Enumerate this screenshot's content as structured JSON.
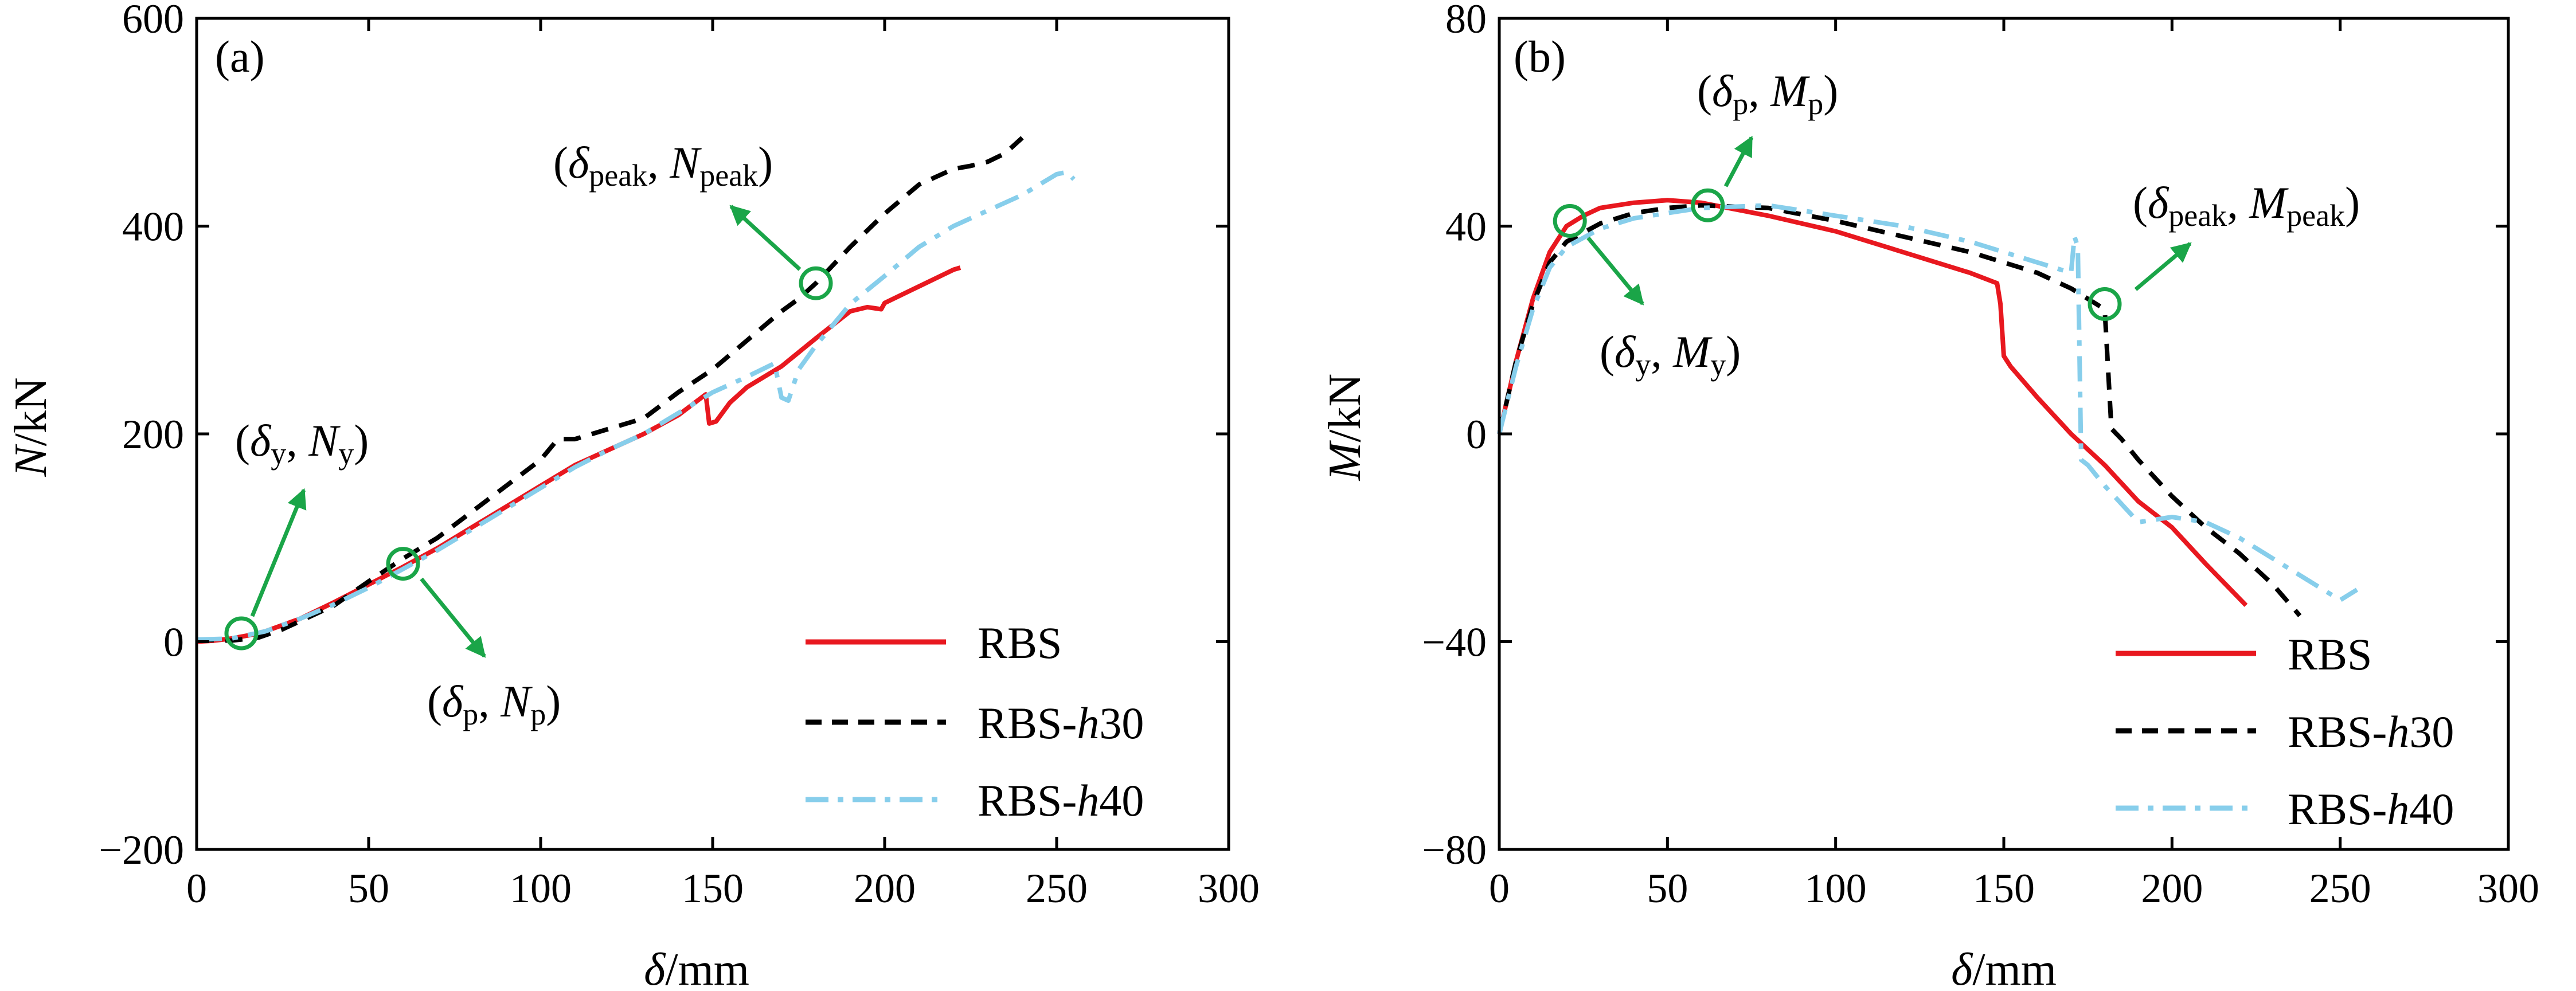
{
  "chart_data": [
    {
      "type": "line",
      "panel_label": "(a)",
      "xlabel": "δ/mm",
      "ylabel": "N/kN",
      "xlim": [
        0,
        300
      ],
      "ylim": [
        -200,
        600
      ],
      "xticks": [
        0,
        50,
        100,
        150,
        200,
        250,
        300
      ],
      "yticks": [
        -200,
        0,
        200,
        400,
        600
      ],
      "grid": false,
      "legend_position": "bottom-right",
      "series": [
        {
          "name": "RBS",
          "color": "#e8181f",
          "dash": "solid",
          "points": [
            [
              0,
              0
            ],
            [
              5,
              1
            ],
            [
              10,
              3
            ],
            [
              15,
              6
            ],
            [
              20,
              10
            ],
            [
              30,
              22
            ],
            [
              40,
              38
            ],
            [
              50,
              55
            ],
            [
              60,
              72
            ],
            [
              70,
              90
            ],
            [
              80,
              110
            ],
            [
              90,
              130
            ],
            [
              100,
              150
            ],
            [
              110,
              170
            ],
            [
              120,
              185
            ],
            [
              130,
              200
            ],
            [
              140,
              218
            ],
            [
              148,
              238
            ],
            [
              149,
              210
            ],
            [
              151,
              212
            ],
            [
              155,
              230
            ],
            [
              160,
              245
            ],
            [
              170,
              265
            ],
            [
              180,
              292
            ],
            [
              190,
              318
            ],
            [
              195,
              322
            ],
            [
              199,
              320
            ],
            [
              200,
              326
            ],
            [
              210,
              342
            ],
            [
              220,
              358
            ],
            [
              222,
              360
            ]
          ]
        },
        {
          "name": "RBS-h30",
          "color": "#000000",
          "dash": "dashed",
          "points": [
            [
              0,
              2
            ],
            [
              10,
              1
            ],
            [
              18,
              4
            ],
            [
              25,
              12
            ],
            [
              40,
              35
            ],
            [
              50,
              58
            ],
            [
              60,
              80
            ],
            [
              70,
              100
            ],
            [
              80,
              125
            ],
            [
              90,
              150
            ],
            [
              100,
              175
            ],
            [
              105,
              195
            ],
            [
              110,
              195
            ],
            [
              120,
              205
            ],
            [
              130,
              215
            ],
            [
              140,
              240
            ],
            [
              150,
              262
            ],
            [
              160,
              290
            ],
            [
              170,
              318
            ],
            [
              175,
              330
            ],
            [
              180,
              345
            ],
            [
              190,
              380
            ],
            [
              200,
              412
            ],
            [
              210,
              440
            ],
            [
              220,
              455
            ],
            [
              225,
              458
            ],
            [
              230,
              462
            ],
            [
              235,
              470
            ],
            [
              240,
              485
            ]
          ]
        },
        {
          "name": "RBS-h40",
          "color": "#87ceeb",
          "dash": "dashdot",
          "points": [
            [
              0,
              2
            ],
            [
              10,
              3
            ],
            [
              20,
              10
            ],
            [
              30,
              22
            ],
            [
              40,
              36
            ],
            [
              50,
              52
            ],
            [
              60,
              70
            ],
            [
              70,
              88
            ],
            [
              80,
              108
            ],
            [
              90,
              128
            ],
            [
              100,
              148
            ],
            [
              110,
              168
            ],
            [
              120,
              185
            ],
            [
              130,
              200
            ],
            [
              140,
              220
            ],
            [
              150,
              240
            ],
            [
              160,
              255
            ],
            [
              168,
              268
            ],
            [
              170,
              235
            ],
            [
              172,
              232
            ],
            [
              175,
              262
            ],
            [
              180,
              285
            ],
            [
              185,
              305
            ],
            [
              190,
              325
            ],
            [
              200,
              352
            ],
            [
              210,
              380
            ],
            [
              220,
              400
            ],
            [
              230,
              415
            ],
            [
              240,
              430
            ],
            [
              250,
              450
            ],
            [
              253,
              452
            ],
            [
              255,
              445
            ]
          ]
        }
      ],
      "annotations": [
        {
          "name": "yield",
          "label": "(δy, Ny)",
          "point": [
            13,
            8
          ]
        },
        {
          "name": "p",
          "label": "(δp, Np)",
          "point": [
            60,
            75
          ]
        },
        {
          "name": "peak",
          "label": "(δpeak, Npeak)",
          "point": [
            180,
            345
          ]
        }
      ]
    },
    {
      "type": "line",
      "panel_label": "(b)",
      "xlabel": "δ/mm",
      "ylabel": "M/kN",
      "xlim": [
        0,
        300
      ],
      "ylim": [
        -80,
        80
      ],
      "xticks": [
        0,
        50,
        100,
        150,
        200,
        250,
        300
      ],
      "yticks": [
        -80,
        -40,
        0,
        40,
        80
      ],
      "grid": false,
      "legend_position": "bottom-right",
      "series": [
        {
          "name": "RBS",
          "color": "#e8181f",
          "dash": "solid",
          "points": [
            [
              0,
              0
            ],
            [
              5,
              14
            ],
            [
              10,
              26
            ],
            [
              15,
              35
            ],
            [
              20,
              40
            ],
            [
              25,
              42
            ],
            [
              30,
              43.5
            ],
            [
              40,
              44.5
            ],
            [
              50,
              45
            ],
            [
              60,
              44.5
            ],
            [
              80,
              42
            ],
            [
              100,
              39
            ],
            [
              120,
              35
            ],
            [
              140,
              31
            ],
            [
              148,
              29
            ],
            [
              149,
              25
            ],
            [
              150,
              15
            ],
            [
              152,
              13
            ],
            [
              160,
              7
            ],
            [
              170,
              0
            ],
            [
              180,
              -6
            ],
            [
              190,
              -13
            ],
            [
              200,
              -18
            ],
            [
              210,
              -25
            ],
            [
              222,
              -33
            ]
          ]
        },
        {
          "name": "RBS-h30",
          "color": "#000000",
          "dash": "dashed",
          "points": [
            [
              0,
              0
            ],
            [
              5,
              14
            ],
            [
              10,
              25
            ],
            [
              15,
              33
            ],
            [
              20,
              37
            ],
            [
              30,
              40.5
            ],
            [
              40,
              42.5
            ],
            [
              50,
              43.5
            ],
            [
              60,
              44
            ],
            [
              80,
              43.5
            ],
            [
              100,
              41
            ],
            [
              120,
              38
            ],
            [
              140,
              35
            ],
            [
              160,
              31
            ],
            [
              170,
              28
            ],
            [
              175,
              26
            ],
            [
              180,
              24
            ],
            [
              182,
              1
            ],
            [
              185,
              -1
            ],
            [
              190,
              -5
            ],
            [
              200,
              -12
            ],
            [
              210,
              -18
            ],
            [
              220,
              -23
            ],
            [
              230,
              -29
            ],
            [
              238,
              -35
            ]
          ]
        },
        {
          "name": "RBS-h40",
          "color": "#87ceeb",
          "dash": "dashdot",
          "points": [
            [
              0,
              0
            ],
            [
              5,
              13
            ],
            [
              10,
              24
            ],
            [
              15,
              32
            ],
            [
              20,
              36
            ],
            [
              30,
              39.5
            ],
            [
              40,
              41.5
            ],
            [
              50,
              42.5
            ],
            [
              60,
              43.5
            ],
            [
              80,
              44
            ],
            [
              100,
              42
            ],
            [
              120,
              40
            ],
            [
              140,
              37
            ],
            [
              160,
              33
            ],
            [
              170,
              31
            ],
            [
              171,
              38
            ],
            [
              172,
              36
            ],
            [
              173,
              -5
            ],
            [
              175,
              -6
            ],
            [
              180,
              -10
            ],
            [
              190,
              -17
            ],
            [
              200,
              -16
            ],
            [
              210,
              -17
            ],
            [
              220,
              -20
            ],
            [
              230,
              -24
            ],
            [
              240,
              -28
            ],
            [
              250,
              -32
            ],
            [
              255,
              -30
            ]
          ]
        }
      ],
      "annotations": [
        {
          "name": "p",
          "label": "(δp, Mp)",
          "point": [
            62,
            44
          ]
        },
        {
          "name": "yield",
          "label": "(δy, My)",
          "point": [
            21,
            41
          ]
        },
        {
          "name": "peak",
          "label": "(δpeak, Mpeak)",
          "point": [
            180,
            25
          ]
        }
      ]
    }
  ]
}
